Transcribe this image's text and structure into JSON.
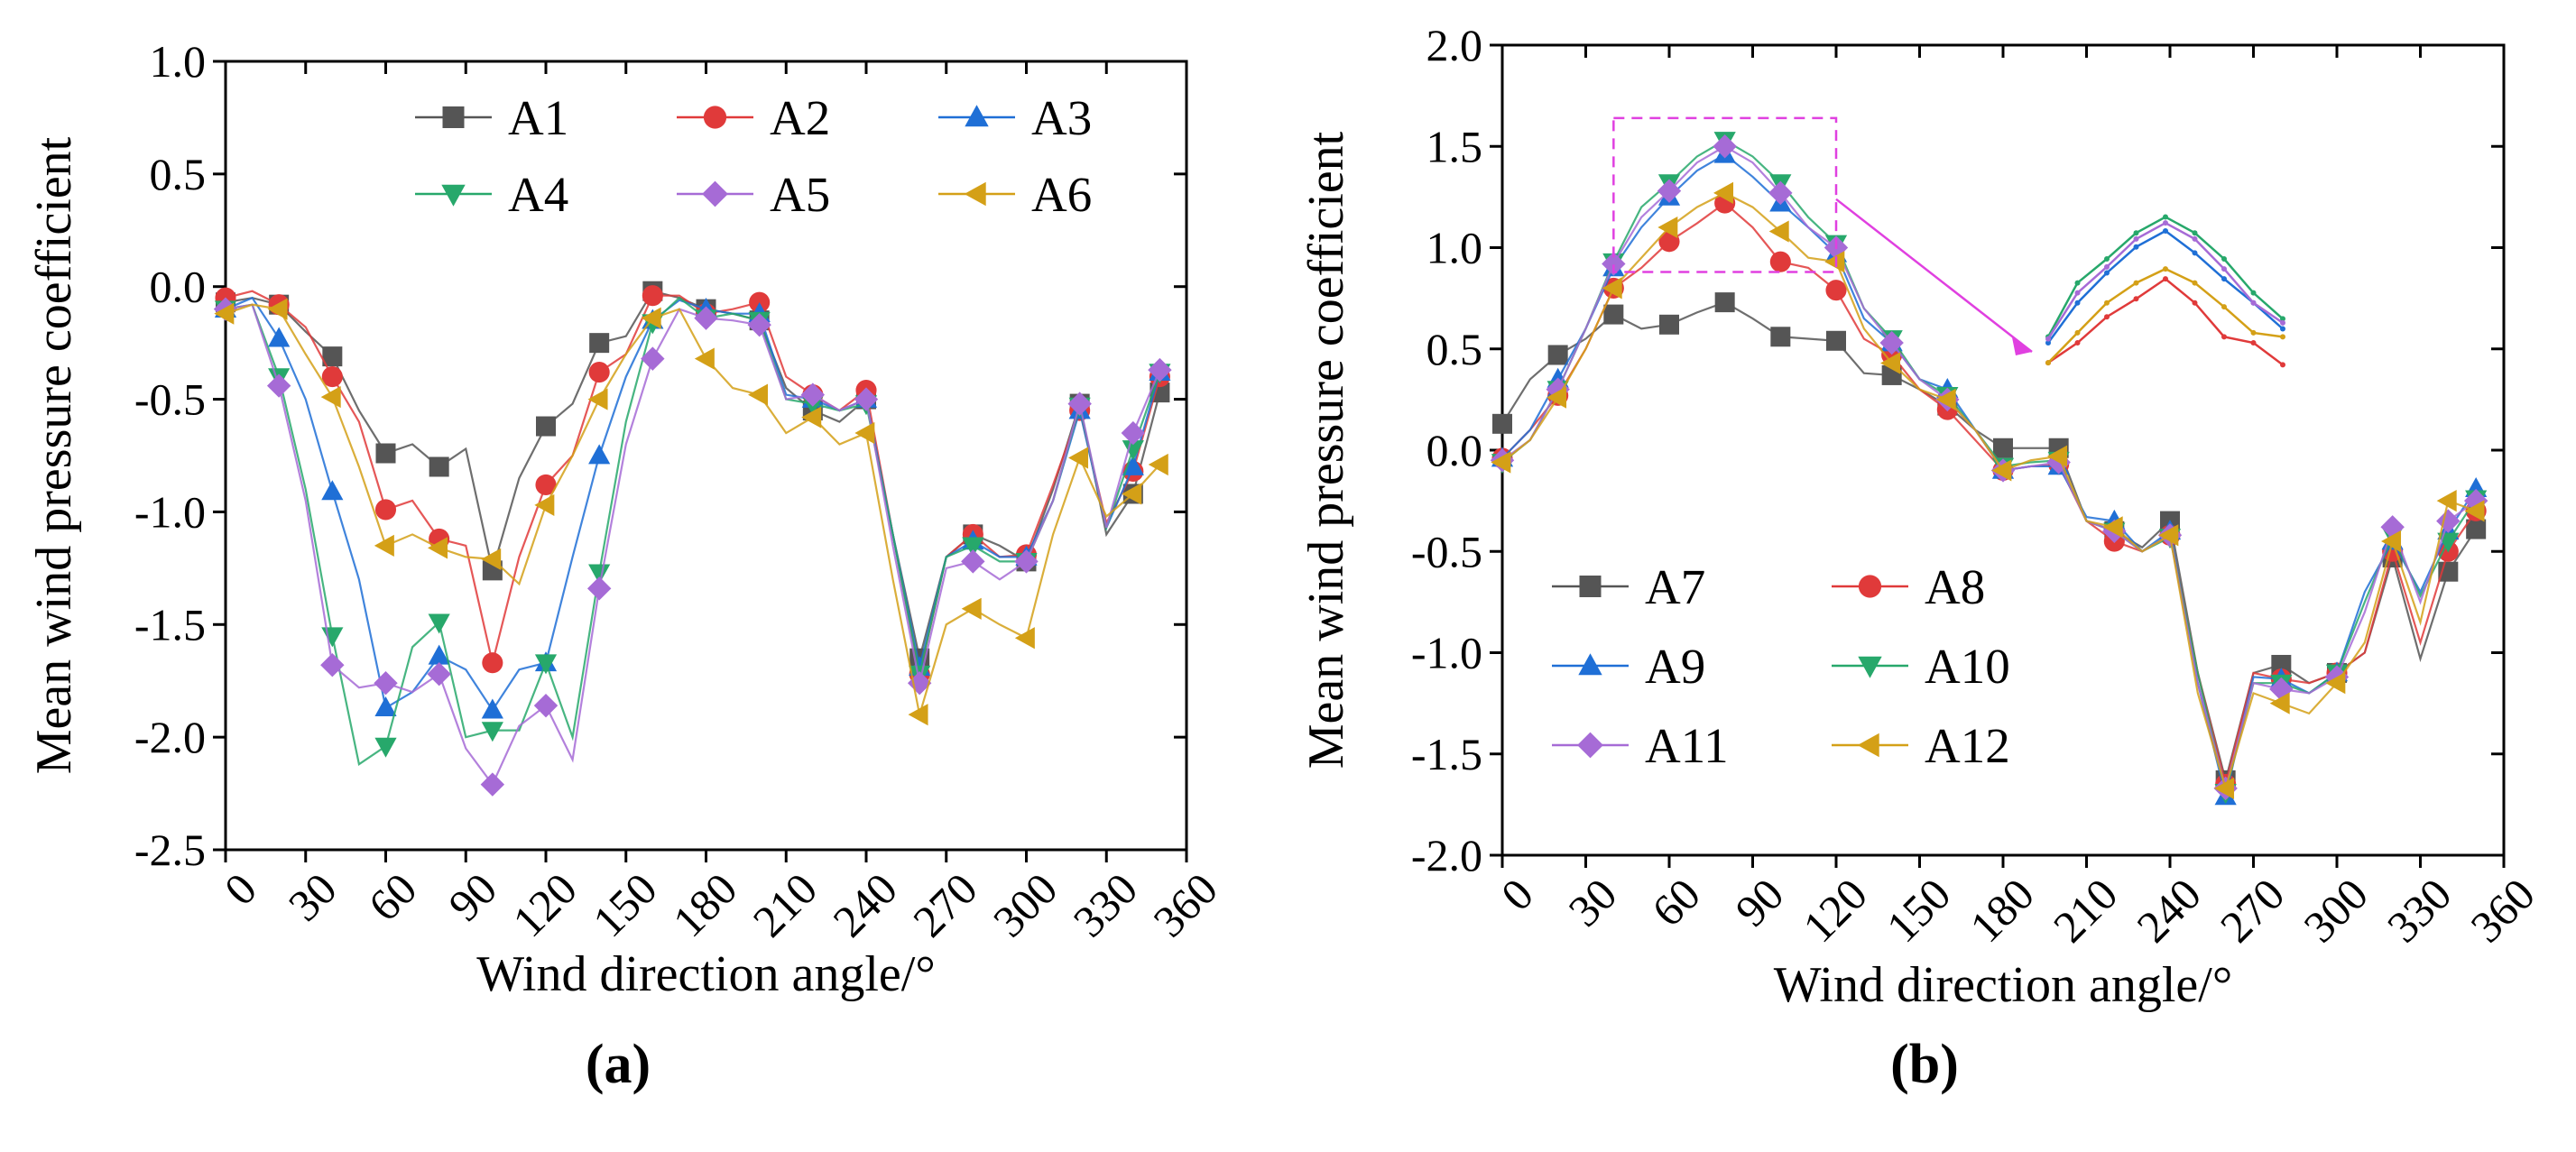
{
  "chart_data": [
    {
      "type": "line",
      "panel_label": "(a)",
      "xlabel": "Wind direction angle/°",
      "ylabel": "Mean wind pressure coefficient",
      "xlim": [
        0,
        360
      ],
      "ylim": [
        -2.5,
        1.0
      ],
      "xticks": [
        0,
        30,
        60,
        90,
        120,
        150,
        180,
        210,
        240,
        270,
        300,
        330,
        360
      ],
      "yticks": [
        1.0,
        0.5,
        0.0,
        -0.5,
        -1.0,
        -1.5,
        -2.0,
        -2.5
      ],
      "xtick_labels": [
        "0",
        "30",
        "60",
        "90",
        "120",
        "150",
        "180",
        "210",
        "240",
        "270",
        "300",
        "330",
        "360"
      ],
      "ytick_labels": [
        "1.0",
        "0.5",
        "0.0",
        "-0.5",
        "-1.0",
        "-1.5",
        "-2.0",
        "-2.5"
      ],
      "legend_position": "top-right",
      "legend_columns": 3,
      "grid": false,
      "x": [
        0,
        10,
        20,
        30,
        40,
        50,
        60,
        70,
        80,
        90,
        100,
        110,
        120,
        130,
        140,
        150,
        160,
        170,
        180,
        190,
        200,
        210,
        220,
        230,
        240,
        250,
        260,
        270,
        280,
        290,
        300,
        310,
        320,
        330,
        340,
        350
      ],
      "series": [
        {
          "name": "A1",
          "color": "#555555",
          "marker": "square",
          "values": [
            -0.07,
            -0.05,
            -0.08,
            -0.2,
            -0.31,
            -0.55,
            -0.74,
            -0.7,
            -0.8,
            -0.72,
            -1.26,
            -0.85,
            -0.62,
            -0.52,
            -0.25,
            -0.22,
            -0.02,
            -0.05,
            -0.1,
            -0.12,
            -0.15,
            -0.45,
            -0.55,
            -0.6,
            -0.5,
            -1.1,
            -1.65,
            -1.2,
            -1.1,
            -1.15,
            -1.22,
            -0.9,
            -0.52,
            -1.1,
            -0.92,
            -0.47
          ]
        },
        {
          "name": "A2",
          "color": "#e03a3a",
          "marker": "circle",
          "values": [
            -0.05,
            -0.02,
            -0.08,
            -0.18,
            -0.4,
            -0.6,
            -0.99,
            -0.95,
            -1.12,
            -1.15,
            -1.67,
            -1.2,
            -0.88,
            -0.75,
            -0.38,
            -0.3,
            -0.04,
            -0.04,
            -0.12,
            -0.1,
            -0.07,
            -0.4,
            -0.48,
            -0.55,
            -0.46,
            -1.1,
            -1.72,
            -1.2,
            -1.1,
            -1.2,
            -1.19,
            -0.88,
            -0.55,
            -1.05,
            -0.82,
            -0.4
          ]
        },
        {
          "name": "A3",
          "color": "#1f6fd6",
          "marker": "triangle-up",
          "values": [
            -0.1,
            -0.05,
            -0.23,
            -0.5,
            -0.91,
            -1.3,
            -1.87,
            -1.8,
            -1.64,
            -1.7,
            -1.88,
            -1.7,
            -1.67,
            -1.2,
            -0.75,
            -0.4,
            -0.15,
            -0.06,
            -0.1,
            -0.12,
            -0.12,
            -0.48,
            -0.5,
            -0.55,
            -0.5,
            -1.1,
            -1.69,
            -1.2,
            -1.13,
            -1.2,
            -1.2,
            -0.95,
            -0.55,
            -1.07,
            -0.8,
            -0.38
          ]
        },
        {
          "name": "A4",
          "color": "#27a86b",
          "marker": "triangle-down",
          "values": [
            -0.1,
            -0.08,
            -0.4,
            -0.9,
            -1.55,
            -2.12,
            -2.04,
            -1.6,
            -1.49,
            -2.0,
            -1.97,
            -1.97,
            -1.67,
            -2.0,
            -1.27,
            -0.6,
            -0.16,
            -0.05,
            -0.14,
            -0.12,
            -0.15,
            -0.5,
            -0.52,
            -0.55,
            -0.52,
            -1.1,
            -1.72,
            -1.2,
            -1.15,
            -1.22,
            -1.22,
            -0.95,
            -0.53,
            -1.07,
            -0.72,
            -0.38
          ]
        },
        {
          "name": "A5",
          "color": "#a66bd6",
          "marker": "diamond",
          "values": [
            -0.1,
            -0.08,
            -0.44,
            -0.95,
            -1.68,
            -1.78,
            -1.76,
            -1.8,
            -1.72,
            -2.05,
            -2.21,
            -1.95,
            -1.86,
            -2.1,
            -1.34,
            -0.7,
            -0.32,
            -0.1,
            -0.14,
            -0.15,
            -0.17,
            -0.5,
            -0.48,
            -0.55,
            -0.5,
            -1.15,
            -1.76,
            -1.25,
            -1.22,
            -1.3,
            -1.22,
            -0.95,
            -0.52,
            -1.07,
            -0.65,
            -0.37
          ]
        },
        {
          "name": "A6",
          "color": "#d4a017",
          "marker": "triangle-left",
          "values": [
            -0.12,
            -0.08,
            -0.1,
            -0.3,
            -0.49,
            -0.8,
            -1.15,
            -1.1,
            -1.16,
            -1.2,
            -1.21,
            -1.32,
            -0.97,
            -0.75,
            -0.5,
            -0.3,
            -0.14,
            -0.1,
            -0.32,
            -0.45,
            -0.48,
            -0.65,
            -0.58,
            -0.7,
            -0.65,
            -1.3,
            -1.9,
            -1.5,
            -1.43,
            -1.5,
            -1.56,
            -1.1,
            -0.76,
            -1.02,
            -0.92,
            -0.79
          ]
        }
      ]
    },
    {
      "type": "line",
      "panel_label": "(b)",
      "xlabel": "Wind direction angle/°",
      "ylabel": "Mean wind pressure coefficient",
      "xlim": [
        0,
        360
      ],
      "ylim": [
        -2.0,
        2.0
      ],
      "xticks": [
        0,
        30,
        60,
        90,
        120,
        150,
        180,
        210,
        240,
        270,
        300,
        330,
        360
      ],
      "yticks": [
        2.0,
        1.5,
        1.0,
        0.5,
        0.0,
        -0.5,
        -1.0,
        -1.5,
        -2.0
      ],
      "xtick_labels": [
        "0",
        "30",
        "60",
        "90",
        "120",
        "150",
        "180",
        "210",
        "240",
        "270",
        "300",
        "330",
        "360"
      ],
      "ytick_labels": [
        "2.0",
        "1.5",
        "1.0",
        "0.5",
        "0.0",
        "-0.5",
        "-1.0",
        "-1.5",
        "-2.0"
      ],
      "legend_position": "bottom-left",
      "legend_columns": 2,
      "grid": false,
      "inset": {
        "description": "magnified view of peak region 40–120°",
        "x_range": [
          40,
          120
        ],
        "y_range": [
          0.9,
          1.6
        ]
      },
      "x": [
        0,
        10,
        20,
        30,
        40,
        50,
        60,
        70,
        80,
        90,
        100,
        110,
        120,
        130,
        140,
        150,
        160,
        170,
        180,
        190,
        200,
        210,
        220,
        230,
        240,
        250,
        260,
        270,
        280,
        290,
        300,
        310,
        320,
        330,
        340,
        350
      ],
      "series": [
        {
          "name": "A7",
          "color": "#555555",
          "marker": "square",
          "values": [
            0.13,
            0.35,
            0.47,
            0.55,
            0.67,
            0.6,
            0.62,
            0.68,
            0.73,
            0.65,
            0.56,
            0.55,
            0.54,
            0.38,
            0.37,
            0.3,
            0.22,
            0.1,
            0.01,
            0.01,
            0.01,
            -0.35,
            -0.4,
            -0.48,
            -0.35,
            -1.1,
            -1.63,
            -1.1,
            -1.06,
            -1.15,
            -1.1,
            -1.0,
            -0.53,
            -1.03,
            -0.6,
            -0.39
          ]
        },
        {
          "name": "A8",
          "color": "#e03a3a",
          "marker": "circle",
          "values": [
            -0.04,
            0.1,
            0.27,
            0.5,
            0.8,
            0.9,
            1.03,
            1.12,
            1.22,
            1.1,
            0.93,
            0.9,
            0.79,
            0.55,
            0.47,
            0.3,
            0.2,
            0.05,
            -0.1,
            -0.08,
            -0.07,
            -0.35,
            -0.45,
            -0.5,
            -0.42,
            -1.1,
            -1.65,
            -1.1,
            -1.13,
            -1.15,
            -1.1,
            -1.0,
            -0.5,
            -0.95,
            -0.5,
            -0.3
          ]
        },
        {
          "name": "A9",
          "color": "#1f6fd6",
          "marker": "triangle-up",
          "values": [
            -0.04,
            0.1,
            0.35,
            0.6,
            0.9,
            1.1,
            1.25,
            1.38,
            1.46,
            1.35,
            1.22,
            1.1,
            0.97,
            0.65,
            0.53,
            0.35,
            0.3,
            0.1,
            -0.1,
            -0.08,
            -0.08,
            -0.33,
            -0.35,
            -0.5,
            -0.4,
            -1.15,
            -1.71,
            -1.12,
            -1.13,
            -1.2,
            -1.1,
            -0.7,
            -0.45,
            -0.7,
            -0.4,
            -0.19
          ]
        },
        {
          "name": "A10",
          "color": "#27a86b",
          "marker": "triangle-down",
          "values": [
            -0.06,
            0.05,
            0.3,
            0.6,
            0.93,
            1.2,
            1.32,
            1.45,
            1.53,
            1.45,
            1.32,
            1.15,
            1.02,
            0.7,
            0.55,
            0.35,
            0.27,
            0.1,
            -0.08,
            -0.06,
            -0.05,
            -0.35,
            -0.4,
            -0.5,
            -0.43,
            -1.1,
            -1.69,
            -1.15,
            -1.15,
            -1.2,
            -1.1,
            -0.75,
            -0.42,
            -0.72,
            -0.45,
            -0.24
          ]
        },
        {
          "name": "A11",
          "color": "#a66bd6",
          "marker": "diamond",
          "values": [
            -0.05,
            0.05,
            0.3,
            0.6,
            0.92,
            1.15,
            1.28,
            1.42,
            1.5,
            1.42,
            1.27,
            1.1,
            1.0,
            0.7,
            0.53,
            0.35,
            0.25,
            0.1,
            -0.1,
            -0.08,
            -0.06,
            -0.35,
            -0.4,
            -0.5,
            -0.42,
            -1.15,
            -1.67,
            -1.15,
            -1.18,
            -1.2,
            -1.12,
            -0.8,
            -0.38,
            -0.75,
            -0.35,
            -0.25
          ]
        },
        {
          "name": "A12",
          "color": "#d4a017",
          "marker": "triangle-left",
          "values": [
            -0.06,
            0.05,
            0.26,
            0.5,
            0.8,
            0.95,
            1.1,
            1.2,
            1.27,
            1.2,
            1.08,
            0.95,
            0.93,
            0.6,
            0.43,
            0.3,
            0.25,
            0.1,
            -0.1,
            -0.05,
            -0.03,
            -0.35,
            -0.38,
            -0.5,
            -0.42,
            -1.2,
            -1.67,
            -1.2,
            -1.25,
            -1.3,
            -1.15,
            -0.95,
            -0.45,
            -0.85,
            -0.25,
            -0.3
          ]
        }
      ]
    }
  ]
}
